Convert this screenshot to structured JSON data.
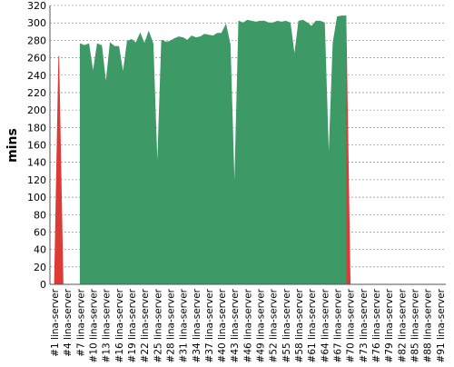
{
  "chart_data": {
    "type": "area",
    "y_label": "mins",
    "categories": [
      "#1 lina-server",
      null,
      null,
      "#4 lina-server",
      null,
      null,
      "#7 lina-server",
      null,
      null,
      "#10 lina-server",
      null,
      null,
      "#13 lina-server",
      null,
      null,
      "#16 lina-server",
      null,
      null,
      "#19 lina-server",
      null,
      null,
      "#22 lina-server",
      null,
      null,
      "#25 lina-server",
      null,
      null,
      "#28 lina-server",
      null,
      null,
      "#31 lina-server",
      null,
      null,
      "#34 lina-server",
      null,
      null,
      "#37 lina-server",
      null,
      null,
      "#40 lina-server",
      null,
      null,
      "#43 lina-server",
      null,
      null,
      "#46 lina-server",
      null,
      null,
      "#49 lina-server",
      null,
      null,
      "#52 lina-server",
      null,
      null,
      "#55 lina-server",
      null,
      null,
      "#58 lina-server",
      null,
      null,
      "#61 lina-server",
      null,
      null,
      "#64 lina-server",
      null,
      null,
      "#67 lina-server",
      null,
      null,
      "#70 lina-server",
      null,
      null,
      "#73 lina-server",
      null,
      null,
      "#76 lina-server",
      null,
      null,
      "#79 lina-server",
      null,
      null,
      "#82 lina-server",
      null,
      null,
      "#85 lina-server",
      null,
      null,
      "#88 lina-server",
      null,
      null,
      "#91 lina-server",
      null
    ],
    "series": [
      {
        "color": "#dd3b36",
        "values": [
          0,
          262,
          0,
          0,
          0,
          0,
          0,
          0,
          0,
          0,
          0,
          0,
          0,
          0,
          0,
          0,
          0,
          0,
          0,
          0,
          0,
          0,
          0,
          0,
          0,
          0,
          0,
          0,
          0,
          0,
          0,
          0,
          0,
          0,
          0,
          0,
          0,
          0,
          0,
          0,
          0,
          0,
          0,
          0,
          0,
          0,
          0,
          0,
          0,
          0,
          0,
          0,
          0,
          0,
          0,
          0,
          0,
          0,
          0,
          0,
          0,
          0,
          0,
          0,
          0,
          0,
          0,
          0,
          308,
          0,
          0,
          0,
          0,
          0,
          0,
          0,
          0,
          0,
          0,
          0,
          0,
          0,
          0,
          0,
          0,
          0,
          0,
          0,
          0,
          0,
          0,
          0
        ]
      },
      {
        "color": "#3d9a67",
        "values": [
          null,
          null,
          null,
          null,
          null,
          null,
          276,
          274,
          276,
          243,
          276,
          274,
          230,
          277,
          273,
          273,
          242,
          279,
          281,
          277,
          288,
          276,
          290,
          276,
          130,
          280,
          278,
          279,
          282,
          284,
          283,
          280,
          285,
          283,
          284,
          287,
          286,
          285,
          288,
          288,
          298,
          275,
          105,
          302,
          300,
          303,
          302,
          301,
          302,
          302,
          300,
          300,
          302,
          301,
          302,
          300,
          262,
          302,
          303,
          300,
          296,
          302,
          302,
          300,
          140,
          277,
          307,
          308,
          308,
          null,
          null,
          null,
          null,
          null,
          null,
          null,
          null,
          null,
          null,
          null,
          null,
          null,
          null,
          null,
          null,
          null,
          null,
          null,
          null,
          null,
          null,
          null
        ]
      }
    ],
    "ylim": [
      0,
      320
    ],
    "yticks": [
      0,
      20,
      40,
      60,
      80,
      100,
      120,
      140,
      160,
      180,
      200,
      220,
      240,
      260,
      280,
      300,
      320
    ],
    "grid": true
  }
}
